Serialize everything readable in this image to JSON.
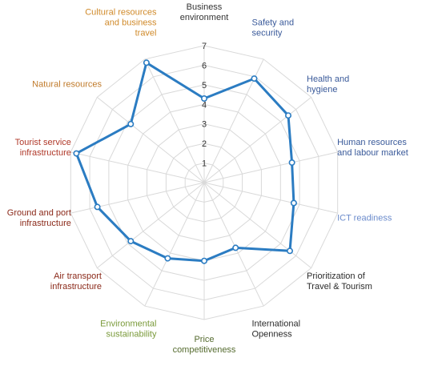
{
  "chart_data": {
    "type": "radar",
    "title": "",
    "categories": [
      "Business environment",
      "Safety and security",
      "Health and hygiene",
      "Human resources and labour market",
      "ICT readiness",
      "Prioritization of Travel & Tourism",
      "International Openness",
      "Price competitiveness",
      "Environmental sustainability",
      "Air transport infrastructure",
      "Ground and port infrastructure",
      "Tourist service infrastructure",
      "Natural resources",
      "Cultural resources and business travel"
    ],
    "category_label_lines": [
      [
        "Business",
        "environment"
      ],
      [
        "Safety and",
        "security"
      ],
      [
        "Health and",
        "hygiene"
      ],
      [
        "Human resources",
        "and labour market"
      ],
      [
        "ICT readiness"
      ],
      [
        "Prioritization of",
        "Travel & Tourism"
      ],
      [
        "International",
        "Openness"
      ],
      [
        "Price",
        "competitiveness"
      ],
      [
        "Environmental",
        "sustainability"
      ],
      [
        "Air transport",
        "infrastructure"
      ],
      [
        "Ground and port",
        "infrastructure"
      ],
      [
        "Tourist service",
        "infrastructure"
      ],
      [
        "Natural resources"
      ],
      [
        "Cultural resources",
        "and business",
        "travel"
      ]
    ],
    "category_colors": [
      "#333333",
      "#3a5a9a",
      "#3a5a9a",
      "#3a5a9a",
      "#6c8ccc",
      "#2b2b2b",
      "#2b2b2b",
      "#556b2f",
      "#7a9a3a",
      "#8b2a1a",
      "#8b2a1a",
      "#b0392a",
      "#c07a2a",
      "#d08a2a"
    ],
    "series": [
      {
        "values": [
          4.3,
          5.9,
          5.5,
          4.6,
          4.7,
          5.6,
          3.7,
          4.0,
          4.3,
          4.8,
          5.6,
          6.7,
          4.8,
          6.8
        ]
      }
    ],
    "rlim": [
      0,
      7
    ],
    "rticks": [
      "1",
      "2",
      "3",
      "4",
      "5",
      "6",
      "7"
    ],
    "grid": true,
    "legend": false,
    "colors": {
      "series": "#2b7cc2",
      "grid": "#d9d9d9",
      "marker_fill": "#ffffff"
    }
  }
}
